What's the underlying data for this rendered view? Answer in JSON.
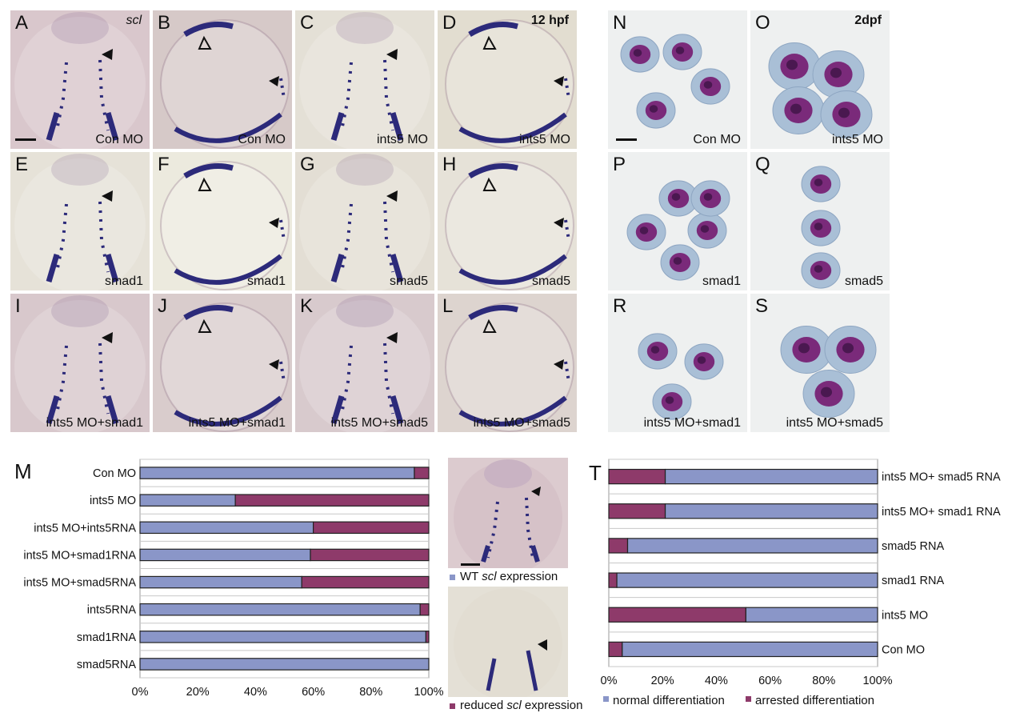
{
  "colors": {
    "normal": "#8a96c8",
    "arrested": "#8e3a6a",
    "stain": "#2c2a7a",
    "cell_bg": "#a9bfd6",
    "nucleus": "#7a2a7a"
  },
  "embryo_panels": [
    {
      "letter": "A",
      "caption": "Con MO",
      "corner": "scl",
      "corner_italic": true,
      "bg": "#d9c7cc",
      "view": "dorsal"
    },
    {
      "letter": "B",
      "caption": "Con MO",
      "corner": "",
      "corner_italic": false,
      "bg": "#d6c9c8",
      "view": "lateral"
    },
    {
      "letter": "C",
      "caption": "ints5 MO",
      "corner": "",
      "corner_italic": false,
      "bg": "#e4e0d6",
      "view": "dorsal"
    },
    {
      "letter": "D",
      "caption": "ints5 MO",
      "corner": "12 hpf",
      "corner_italic": false,
      "bg": "#e2ddd0",
      "view": "lateral"
    },
    {
      "letter": "E",
      "caption": "smad1",
      "corner": "",
      "corner_italic": false,
      "bg": "#e6e2d8",
      "view": "dorsal"
    },
    {
      "letter": "F",
      "caption": "smad1",
      "corner": "",
      "corner_italic": false,
      "bg": "#eceade",
      "view": "lateral"
    },
    {
      "letter": "G",
      "caption": "smad5",
      "corner": "",
      "corner_italic": false,
      "bg": "#e3ded4",
      "view": "dorsal"
    },
    {
      "letter": "H",
      "caption": "smad5",
      "corner": "",
      "corner_italic": false,
      "bg": "#e6e2d8",
      "view": "lateral"
    },
    {
      "letter": "I",
      "caption": "ints5 MO+smad1",
      "corner": "",
      "corner_italic": false,
      "bg": "#d8c8cc",
      "view": "dorsal"
    },
    {
      "letter": "J",
      "caption": "ints5 MO+smad1",
      "corner": "",
      "corner_italic": false,
      "bg": "#d9cccc",
      "view": "lateral"
    },
    {
      "letter": "K",
      "caption": "ints5 MO+smad5",
      "corner": "",
      "corner_italic": false,
      "bg": "#d8cacd",
      "view": "dorsal"
    },
    {
      "letter": "L",
      "caption": "ints5 MO+smad5",
      "corner": "",
      "corner_italic": false,
      "bg": "#ddd4cf",
      "view": "lateral"
    }
  ],
  "cell_panels": [
    {
      "letter": "N",
      "caption": "Con MO",
      "corner": "",
      "cells": 4
    },
    {
      "letter": "O",
      "caption": "ints5 MO",
      "corner": "2dpf",
      "cells": 4
    },
    {
      "letter": "P",
      "caption": "smad1",
      "corner": "",
      "cells": 5
    },
    {
      "letter": "Q",
      "caption": "smad5",
      "corner": "",
      "cells": 3
    },
    {
      "letter": "R",
      "caption": "ints5 MO+smad1",
      "corner": "",
      "cells": 3
    },
    {
      "letter": "S",
      "caption": "ints5 MO+smad5",
      "corner": "",
      "cells": 3
    }
  ],
  "legend_m": {
    "wt_pre": "WT ",
    "wt_italic": "scl",
    "wt_post": " expression",
    "red_pre": "reduced ",
    "red_italic": "scl",
    "red_post": " expression"
  },
  "chart_data": [
    {
      "panel": "M",
      "type": "bar",
      "orientation": "horizontal",
      "stacked": true,
      "categories": [
        "Con MO",
        "ints5 MO",
        "ints5 MO+ints5RNA",
        "ints5 MO+smad1RNA",
        "ints5 MO+smad5RNA",
        "ints5RNA",
        "smad1RNA",
        "smad5RNA"
      ],
      "series": [
        {
          "name": "WT scl expression",
          "color": "#8a96c8",
          "values": [
            95,
            33,
            60,
            59,
            56,
            97,
            99,
            100
          ]
        },
        {
          "name": "reduced scl expression",
          "color": "#8e3a6a",
          "values": [
            5,
            67,
            40,
            41,
            44,
            3,
            1,
            0
          ]
        }
      ],
      "xticks": [
        "0%",
        "20%",
        "40%",
        "60%",
        "80%",
        "100%"
      ],
      "xlim": [
        0,
        100
      ]
    },
    {
      "panel": "T",
      "type": "bar",
      "orientation": "horizontal",
      "stacked": true,
      "categories": [
        "ints5 MO+ smad5 RNA",
        "ints5 MO+ smad1 RNA",
        "smad5 RNA",
        "smad1 RNA",
        "ints5 MO",
        "Con MO"
      ],
      "series": [
        {
          "name": "arrested differentiation",
          "color": "#8e3a6a",
          "values": [
            21,
            21,
            7,
            3,
            51,
            5
          ]
        },
        {
          "name": "normal differentiation",
          "color": "#8a96c8",
          "values": [
            79,
            79,
            93,
            97,
            49,
            95
          ]
        }
      ],
      "xticks": [
        "0%",
        "20%",
        "40%",
        "60%",
        "80%",
        "100%"
      ],
      "xlim": [
        0,
        100
      ],
      "legend": [
        "normal differentiation",
        "arrested differentiation"
      ]
    }
  ]
}
